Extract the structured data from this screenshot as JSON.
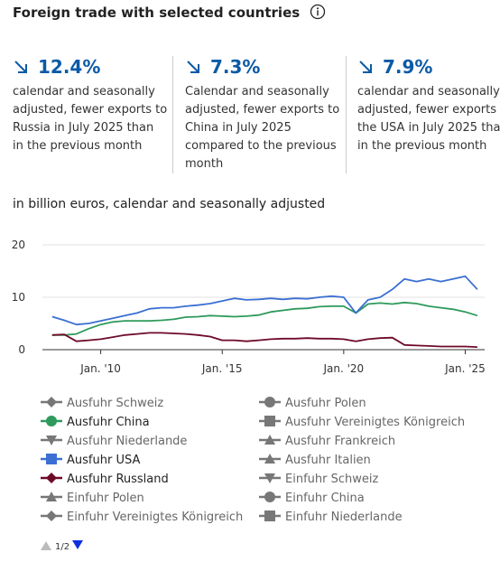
{
  "header": {
    "title": "Foreign trade with selected countries"
  },
  "kpis": [
    {
      "value": "12.4%",
      "text": "calendar and seasonally adjusted, fewer exports to Russia in July 2025 than in the previous month"
    },
    {
      "value": "7.3%",
      "text": "Calendar and seasonally adjusted, fewer exports to China in July 2025 compared to the previous month"
    },
    {
      "value": "7.9%",
      "text": "calendar and seasonally adjusted, fewer exports to the USA in July 2025 than in the previous month"
    }
  ],
  "chart_data": {
    "type": "line",
    "subtitle": "in billion euros, calendar and seasonally adjusted",
    "x": [
      2008,
      2008.5,
      2009,
      2009.5,
      2010,
      2010.5,
      2011,
      2011.5,
      2012,
      2012.5,
      2013,
      2013.5,
      2014,
      2014.5,
      2015,
      2015.5,
      2016,
      2016.5,
      2017,
      2017.5,
      2018,
      2018.5,
      2019,
      2019.5,
      2020,
      2020.5,
      2021,
      2021.5,
      2022,
      2022.5,
      2023,
      2023.5,
      2024,
      2024.5,
      2025,
      2025.5
    ],
    "xlim": [
      2007.6,
      2025.8
    ],
    "xticks": [
      {
        "value": 2010,
        "label": "Jan. '10"
      },
      {
        "value": 2015,
        "label": "Jan. '15"
      },
      {
        "value": 2020,
        "label": "Jan. '20"
      },
      {
        "value": 2025,
        "label": "Jan. '25"
      }
    ],
    "ylim": [
      0,
      20
    ],
    "yticks": [
      0,
      10,
      20
    ],
    "grid": true,
    "series": [
      {
        "name": "Ausfuhr Schweiz",
        "marker": "diamond",
        "visible": false
      },
      {
        "name": "Ausfuhr Polen",
        "marker": "circle",
        "visible": false
      },
      {
        "name": "Ausfuhr China",
        "marker": "circle",
        "visible": true,
        "color": "#2e9a5c",
        "values": [
          2.8,
          2.8,
          3.0,
          4.0,
          4.8,
          5.3,
          5.5,
          5.5,
          5.5,
          5.6,
          5.8,
          6.2,
          6.3,
          6.5,
          6.4,
          6.3,
          6.4,
          6.6,
          7.2,
          7.5,
          7.8,
          7.9,
          8.2,
          8.3,
          8.3,
          7.0,
          8.7,
          8.9,
          8.7,
          9.0,
          8.8,
          8.3,
          8.0,
          7.7,
          7.2,
          6.5
        ]
      },
      {
        "name": "Ausfuhr Vereinigtes Königreich",
        "marker": "square",
        "visible": false
      },
      {
        "name": "Ausfuhr Niederlande",
        "marker": "triangle-down",
        "visible": false
      },
      {
        "name": "Ausfuhr Frankreich",
        "marker": "triangle",
        "visible": false
      },
      {
        "name": "Ausfuhr USA",
        "marker": "square",
        "visible": true,
        "color": "#3b6fd3",
        "values": [
          6.3,
          5.6,
          4.8,
          5.0,
          5.5,
          6.0,
          6.5,
          7.0,
          7.8,
          8.0,
          8.0,
          8.3,
          8.5,
          8.8,
          9.3,
          9.8,
          9.5,
          9.6,
          9.8,
          9.6,
          9.8,
          9.7,
          10.0,
          10.2,
          10.0,
          7.0,
          9.5,
          10.0,
          11.5,
          13.5,
          13.0,
          13.5,
          13.0,
          13.5,
          14.0,
          11.5
        ]
      },
      {
        "name": "Ausfuhr Italien",
        "marker": "triangle",
        "visible": false
      },
      {
        "name": "Ausfuhr Russland",
        "marker": "diamond",
        "visible": true,
        "color": "#6e0a28",
        "values": [
          2.8,
          2.9,
          1.6,
          1.8,
          2.0,
          2.4,
          2.8,
          3.0,
          3.2,
          3.2,
          3.1,
          3.0,
          2.8,
          2.5,
          1.8,
          1.8,
          1.6,
          1.8,
          2.0,
          2.1,
          2.1,
          2.2,
          2.1,
          2.1,
          2.0,
          1.6,
          2.0,
          2.2,
          2.3,
          0.9,
          0.8,
          0.7,
          0.6,
          0.6,
          0.6,
          0.5
        ]
      },
      {
        "name": "Einfuhr Schweiz",
        "marker": "triangle-down",
        "visible": false
      },
      {
        "name": "Einfuhr Polen",
        "marker": "triangle",
        "visible": false
      },
      {
        "name": "Einfuhr China",
        "marker": "circle",
        "visible": false
      },
      {
        "name": "Einfuhr Vereinigtes Königreich",
        "marker": "diamond",
        "visible": false
      },
      {
        "name": "Einfuhr Niederlande",
        "marker": "square",
        "visible": false
      }
    ],
    "legend_page": "1/2"
  }
}
